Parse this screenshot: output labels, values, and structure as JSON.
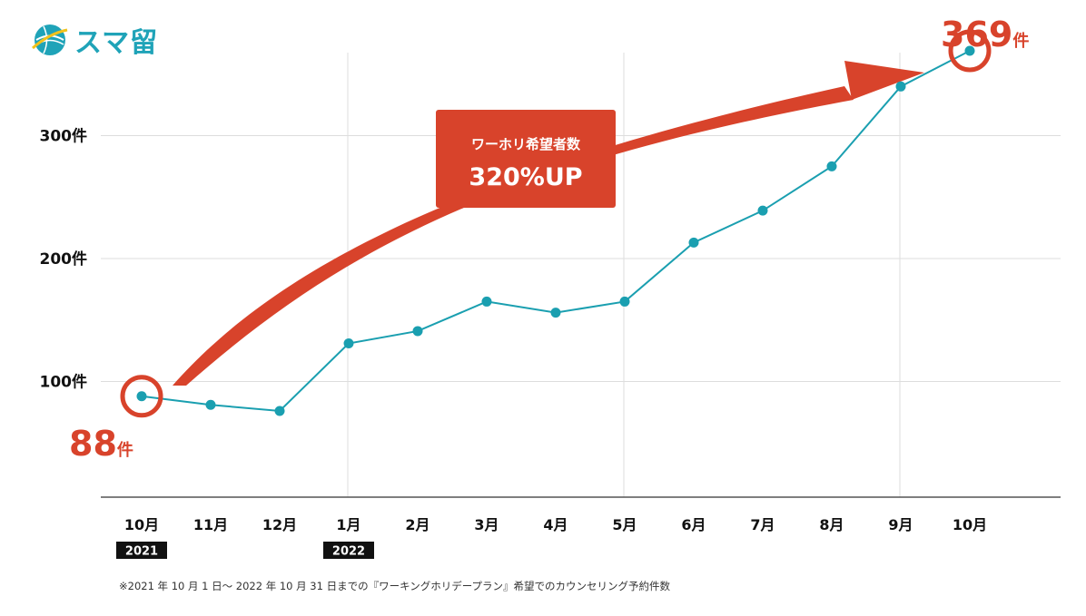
{
  "logo": {
    "text": "スマ留"
  },
  "banner": {
    "line1": "ワーホリ希望者数",
    "line2": "320%UP"
  },
  "callouts": {
    "start": {
      "value": "88",
      "unit": "件"
    },
    "end": {
      "value": "369",
      "unit": "件"
    }
  },
  "footnote": "※2021 年 10 月 1 日〜 2022 年 10 月 31 日までの『ワーキングホリデープラン』希望でのカウンセリング予約件数",
  "colors": {
    "line": "#1a9fb0",
    "accent": "#d8432b",
    "grid": "#dddddd",
    "axis": "#555555",
    "year_badge": "#111111"
  },
  "chart_data": {
    "type": "line",
    "title": "",
    "xlabel": "",
    "ylabel": "",
    "categories": [
      "10月",
      "11月",
      "12月",
      "1月",
      "2月",
      "3月",
      "4月",
      "5月",
      "6月",
      "7月",
      "8月",
      "9月",
      "10月"
    ],
    "year_labels": [
      {
        "index": 0,
        "label": "2021"
      },
      {
        "index": 3,
        "label": "2022"
      }
    ],
    "series": [
      {
        "name": "ワーホリ希望者数",
        "values": [
          88,
          81,
          76,
          131,
          141,
          165,
          156,
          165,
          213,
          239,
          275,
          340,
          369
        ]
      }
    ],
    "y_ticks": [
      {
        "value": 100,
        "label": "100件"
      },
      {
        "value": 200,
        "label": "200件"
      },
      {
        "value": 300,
        "label": "300件"
      }
    ],
    "ylim": [
      0,
      369
    ],
    "grid": true,
    "highlighted_points": [
      0,
      12
    ]
  }
}
